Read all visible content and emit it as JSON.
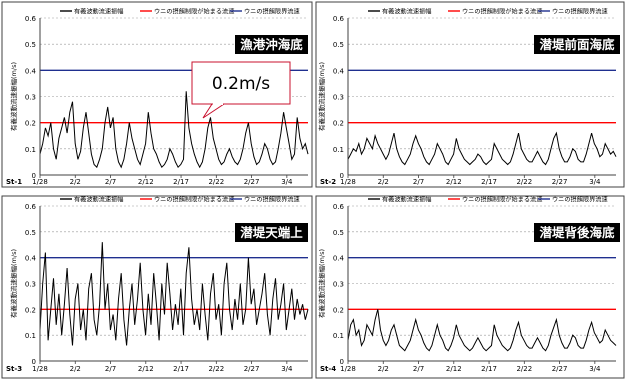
{
  "legend": {
    "amplitude": "有義波動流速振幅",
    "limit_start": "ウニの摂餌制限が始まる流速",
    "limit_critical": "ウニの摂餌限界流速"
  },
  "colors": {
    "series": "#000000",
    "limit_start": "#ff0000",
    "limit_critical": "#1f2f8f",
    "frame": "#404040",
    "grid": "#9a9a9a"
  },
  "callout": {
    "text": "0.2m/s"
  },
  "chart_data": [
    {
      "type": "line",
      "station": "St-1",
      "title": "漁港沖海底",
      "ylabel": "有義波動流速振幅(m/s)",
      "ylim": [
        0,
        0.6
      ],
      "yticks": [
        "0",
        "0.1",
        "0.2",
        "0.3",
        "0.4",
        "0.5",
        "0.6"
      ],
      "xticks": [
        "1/28",
        "2/2",
        "2/7",
        "2/12",
        "2/17",
        "2/22",
        "2/27",
        "3/4"
      ],
      "x_start": "1/28",
      "x_end": "3/7",
      "limit_start": 0.2,
      "limit_critical": 0.4,
      "values": [
        0.08,
        0.12,
        0.18,
        0.15,
        0.2,
        0.1,
        0.06,
        0.14,
        0.18,
        0.22,
        0.16,
        0.24,
        0.28,
        0.12,
        0.06,
        0.09,
        0.18,
        0.24,
        0.16,
        0.08,
        0.04,
        0.03,
        0.06,
        0.1,
        0.2,
        0.26,
        0.18,
        0.22,
        0.1,
        0.05,
        0.03,
        0.06,
        0.12,
        0.2,
        0.14,
        0.1,
        0.06,
        0.04,
        0.08,
        0.12,
        0.24,
        0.16,
        0.1,
        0.08,
        0.05,
        0.03,
        0.04,
        0.06,
        0.1,
        0.08,
        0.05,
        0.03,
        0.04,
        0.06,
        0.32,
        0.18,
        0.12,
        0.08,
        0.05,
        0.03,
        0.05,
        0.1,
        0.18,
        0.22,
        0.14,
        0.1,
        0.06,
        0.04,
        0.05,
        0.08,
        0.1,
        0.07,
        0.05,
        0.04,
        0.06,
        0.1,
        0.16,
        0.2,
        0.12,
        0.07,
        0.04,
        0.05,
        0.08,
        0.12,
        0.1,
        0.06,
        0.04,
        0.05,
        0.1,
        0.16,
        0.24,
        0.18,
        0.12,
        0.06,
        0.08,
        0.22,
        0.14,
        0.1,
        0.12,
        0.08
      ]
    },
    {
      "type": "line",
      "station": "St-2",
      "title": "潜堤前面海底",
      "ylabel": "有義波動流速振幅(m/s)",
      "ylim": [
        0,
        0.6
      ],
      "yticks": [
        "0",
        "0.1",
        "0.2",
        "0.3",
        "0.4",
        "0.5",
        "0.6"
      ],
      "xticks": [
        "1/28",
        "2/2",
        "2/7",
        "2/12",
        "2/17",
        "2/22",
        "2/27",
        "3/4"
      ],
      "x_start": "1/28",
      "x_end": "3/7",
      "limit_start": 0.2,
      "limit_critical": 0.4,
      "values": [
        0.06,
        0.08,
        0.1,
        0.09,
        0.12,
        0.08,
        0.1,
        0.14,
        0.12,
        0.1,
        0.15,
        0.12,
        0.1,
        0.08,
        0.06,
        0.08,
        0.12,
        0.16,
        0.1,
        0.07,
        0.05,
        0.04,
        0.06,
        0.08,
        0.12,
        0.15,
        0.12,
        0.1,
        0.07,
        0.05,
        0.04,
        0.06,
        0.08,
        0.12,
        0.1,
        0.08,
        0.05,
        0.04,
        0.06,
        0.08,
        0.14,
        0.1,
        0.08,
        0.06,
        0.05,
        0.04,
        0.05,
        0.06,
        0.08,
        0.07,
        0.05,
        0.04,
        0.05,
        0.06,
        0.12,
        0.1,
        0.08,
        0.06,
        0.05,
        0.04,
        0.05,
        0.08,
        0.12,
        0.16,
        0.1,
        0.08,
        0.06,
        0.05,
        0.05,
        0.07,
        0.09,
        0.07,
        0.05,
        0.04,
        0.06,
        0.1,
        0.14,
        0.16,
        0.1,
        0.07,
        0.05,
        0.05,
        0.07,
        0.1,
        0.09,
        0.06,
        0.05,
        0.05,
        0.08,
        0.12,
        0.16,
        0.12,
        0.1,
        0.07,
        0.08,
        0.12,
        0.1,
        0.08,
        0.09,
        0.07
      ]
    },
    {
      "type": "line",
      "station": "St-3",
      "title": "潜堤天端上",
      "ylabel": "有義波動流速振幅(m/s)",
      "ylim": [
        0,
        0.6
      ],
      "yticks": [
        "0",
        "0.1",
        "0.2",
        "0.3",
        "0.4",
        "0.5",
        "0.6"
      ],
      "xticks": [
        "1/28",
        "2/2",
        "2/7",
        "2/12",
        "2/17",
        "2/22",
        "2/27",
        "3/4"
      ],
      "x_start": "1/28",
      "x_end": "3/7",
      "limit_start": 0.2,
      "limit_critical": 0.4,
      "values": [
        0.12,
        0.3,
        0.42,
        0.08,
        0.2,
        0.32,
        0.14,
        0.26,
        0.1,
        0.22,
        0.36,
        0.18,
        0.06,
        0.24,
        0.3,
        0.12,
        0.2,
        0.08,
        0.28,
        0.34,
        0.16,
        0.1,
        0.22,
        0.46,
        0.2,
        0.3,
        0.12,
        0.18,
        0.08,
        0.24,
        0.34,
        0.16,
        0.06,
        0.2,
        0.3,
        0.14,
        0.24,
        0.38,
        0.2,
        0.1,
        0.26,
        0.14,
        0.34,
        0.22,
        0.08,
        0.3,
        0.18,
        0.38,
        0.26,
        0.12,
        0.22,
        0.14,
        0.28,
        0.1,
        0.34,
        0.44,
        0.24,
        0.14,
        0.2,
        0.12,
        0.3,
        0.18,
        0.08,
        0.26,
        0.34,
        0.16,
        0.22,
        0.1,
        0.3,
        0.38,
        0.2,
        0.12,
        0.24,
        0.16,
        0.3,
        0.14,
        0.2,
        0.4,
        0.22,
        0.28,
        0.14,
        0.2,
        0.26,
        0.34,
        0.18,
        0.1,
        0.24,
        0.32,
        0.16,
        0.22,
        0.3,
        0.12,
        0.2,
        0.28,
        0.16,
        0.24,
        0.18,
        0.22,
        0.16,
        0.2
      ]
    },
    {
      "type": "line",
      "station": "St-4",
      "title": "潜堤背後海底",
      "ylabel": "有義波動流速振幅(m/s)",
      "ylim": [
        0,
        0.6
      ],
      "yticks": [
        "0",
        "0.1",
        "0.2",
        "0.3",
        "0.4",
        "0.5",
        "0.6"
      ],
      "xticks": [
        "1/28",
        "2/2",
        "2/7",
        "2/12",
        "2/17",
        "2/22",
        "2/27",
        "3/4"
      ],
      "x_start": "1/28",
      "x_end": "3/7",
      "limit_start": 0.2,
      "limit_critical": 0.4,
      "values": [
        0.08,
        0.14,
        0.16,
        0.1,
        0.12,
        0.06,
        0.08,
        0.14,
        0.12,
        0.1,
        0.16,
        0.2,
        0.12,
        0.08,
        0.06,
        0.08,
        0.12,
        0.14,
        0.1,
        0.06,
        0.05,
        0.04,
        0.06,
        0.08,
        0.12,
        0.16,
        0.12,
        0.1,
        0.07,
        0.05,
        0.04,
        0.06,
        0.1,
        0.14,
        0.1,
        0.08,
        0.05,
        0.04,
        0.06,
        0.09,
        0.14,
        0.1,
        0.08,
        0.06,
        0.05,
        0.04,
        0.05,
        0.07,
        0.09,
        0.07,
        0.05,
        0.04,
        0.05,
        0.06,
        0.14,
        0.1,
        0.08,
        0.06,
        0.05,
        0.04,
        0.05,
        0.08,
        0.12,
        0.15,
        0.1,
        0.08,
        0.06,
        0.05,
        0.05,
        0.07,
        0.09,
        0.07,
        0.05,
        0.04,
        0.06,
        0.1,
        0.13,
        0.16,
        0.1,
        0.07,
        0.05,
        0.05,
        0.07,
        0.1,
        0.09,
        0.06,
        0.05,
        0.05,
        0.08,
        0.12,
        0.15,
        0.11,
        0.09,
        0.07,
        0.08,
        0.12,
        0.1,
        0.08,
        0.07,
        0.06
      ]
    }
  ]
}
